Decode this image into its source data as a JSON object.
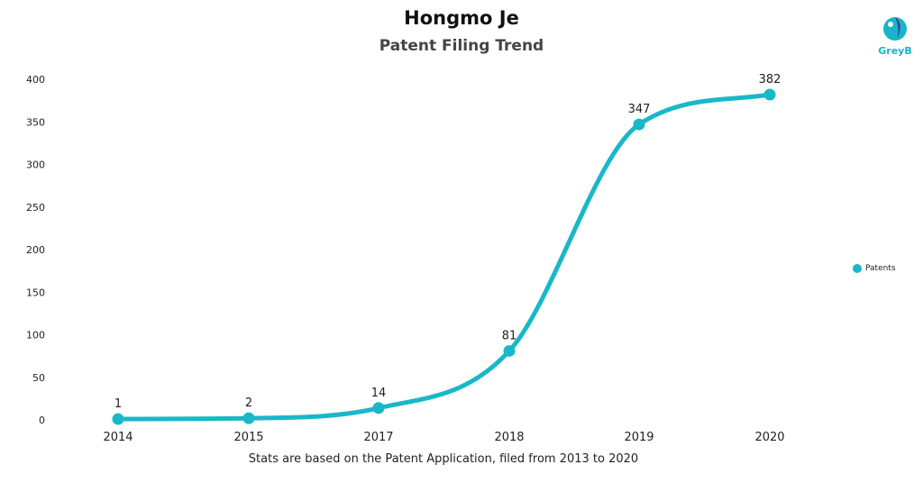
{
  "title": "Hongmo Je",
  "subtitle": "Patent Filing Trend",
  "footnote": "Stats are based on the Patent Application, filed from 2013 to 2020",
  "logo": {
    "text": "GreyB",
    "icon": "greyb-logo-icon"
  },
  "colors": {
    "series": "#19b8c8",
    "logo": "#19b4c8"
  },
  "chart_data": {
    "type": "line",
    "title": "Hongmo Je",
    "subtitle": "Patent Filing Trend",
    "categories": [
      "2014",
      "2015",
      "2017",
      "2018",
      "2019",
      "2020"
    ],
    "series": [
      {
        "name": "Patents",
        "values": [
          1,
          2,
          14,
          81,
          347,
          382
        ]
      }
    ],
    "data_labels": [
      "1",
      "2",
      "14",
      "81",
      "347",
      "382"
    ],
    "y_ticks": [
      0,
      50,
      100,
      150,
      200,
      250,
      300,
      350,
      400
    ],
    "ylim": [
      0,
      400
    ],
    "xlabel": "",
    "ylabel": "",
    "grid": false,
    "legend": "right",
    "smooth": true
  }
}
